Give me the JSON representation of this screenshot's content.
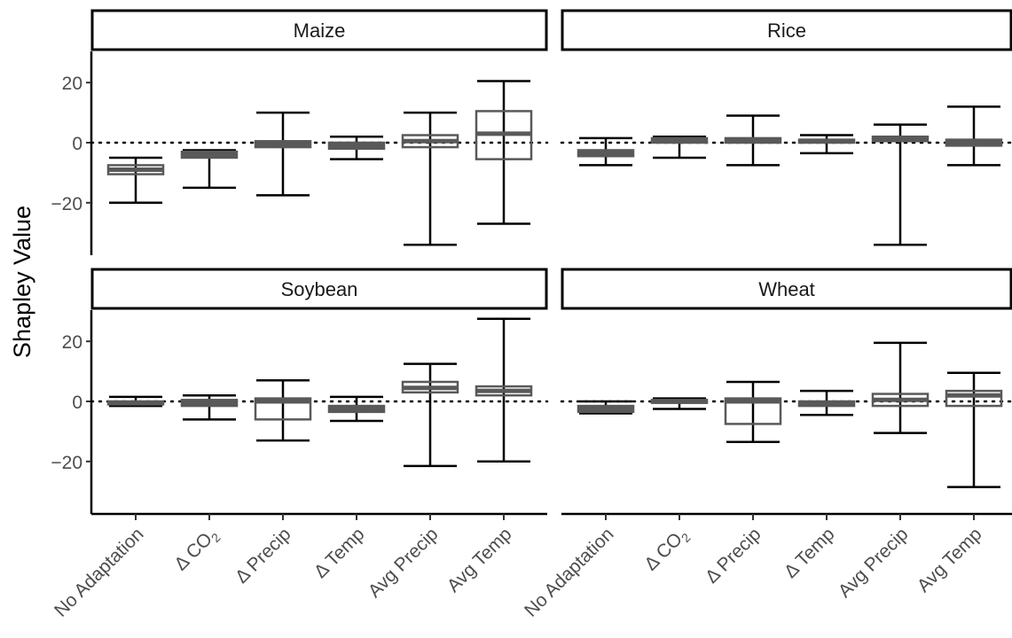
{
  "chart_data": {
    "type": "boxplot",
    "ylabel": "Shapley Value",
    "xlabel": "",
    "ylim": [
      -37,
      32
    ],
    "yticks": [
      20,
      0,
      -20
    ],
    "reference_line": 0,
    "categories": [
      {
        "label": "No Adaptation",
        "sub": ""
      },
      {
        "label": "Δ CO",
        "sub": "2"
      },
      {
        "label": "Δ Precip",
        "sub": ""
      },
      {
        "label": "Δ Temp",
        "sub": ""
      },
      {
        "label": "Avg Precip",
        "sub": ""
      },
      {
        "label": "Avg Temp",
        "sub": ""
      }
    ],
    "panels": [
      {
        "title": "Maize",
        "boxes": [
          {
            "min": -20,
            "q1": -10.5,
            "median": -9,
            "q3": -7.5,
            "max": -5
          },
          {
            "min": -15,
            "q1": -5,
            "median": -4,
            "q3": -3,
            "max": -2.5
          },
          {
            "min": -17.5,
            "q1": -1.5,
            "median": -0.5,
            "q3": 0.5,
            "max": 10
          },
          {
            "min": -5.5,
            "q1": -2,
            "median": -1,
            "q3": 0,
            "max": 2
          },
          {
            "min": -34,
            "q1": -1.5,
            "median": 0.5,
            "q3": 2.5,
            "max": 10
          },
          {
            "min": -27,
            "q1": -5.5,
            "median": 3,
            "q3": 10.5,
            "max": 20.5
          }
        ]
      },
      {
        "title": "Rice",
        "boxes": [
          {
            "min": -7.5,
            "q1": -4.5,
            "median": -3.5,
            "q3": -2.5,
            "max": 1.5
          },
          {
            "min": -5,
            "q1": 0,
            "median": 1,
            "q3": 1.5,
            "max": 2
          },
          {
            "min": -7.5,
            "q1": 0,
            "median": 0.5,
            "q3": 1.5,
            "max": 9
          },
          {
            "min": -3.5,
            "q1": 0,
            "median": 0.5,
            "q3": 1,
            "max": 2.5
          },
          {
            "min": -34,
            "q1": 0.5,
            "median": 1,
            "q3": 2,
            "max": 6
          },
          {
            "min": -7.5,
            "q1": -1,
            "median": 0,
            "q3": 1,
            "max": 12
          }
        ]
      },
      {
        "title": "Soybean",
        "boxes": [
          {
            "min": -1.5,
            "q1": -1,
            "median": -0.5,
            "q3": 0,
            "max": 1.5
          },
          {
            "min": -6,
            "q1": -1.5,
            "median": -0.5,
            "q3": 0.5,
            "max": 2
          },
          {
            "min": -13,
            "q1": -6,
            "median": 0,
            "q3": 1,
            "max": 7
          },
          {
            "min": -6.5,
            "q1": -3.5,
            "median": -2.5,
            "q3": -1.5,
            "max": 1.5
          },
          {
            "min": -21.5,
            "q1": 3,
            "median": 4.5,
            "q3": 6.5,
            "max": 12.5
          },
          {
            "min": -20,
            "q1": 2,
            "median": 3.5,
            "q3": 5,
            "max": 27.5
          }
        ]
      },
      {
        "title": "Wheat",
        "boxes": [
          {
            "min": -4,
            "q1": -3.5,
            "median": -2.5,
            "q3": -1.5,
            "max": 0
          },
          {
            "min": -2.5,
            "q1": -0.5,
            "median": 0,
            "q3": 0.5,
            "max": 1
          },
          {
            "min": -13.5,
            "q1": -7.5,
            "median": 0,
            "q3": 1,
            "max": 6.5
          },
          {
            "min": -4.5,
            "q1": -1.5,
            "median": -0.5,
            "q3": 0,
            "max": 3.5
          },
          {
            "min": -10.5,
            "q1": -1.5,
            "median": 0.5,
            "q3": 2.5,
            "max": 19.5
          },
          {
            "min": -28.5,
            "q1": -1.5,
            "median": 2,
            "q3": 3.5,
            "max": 9.5
          }
        ]
      }
    ]
  }
}
